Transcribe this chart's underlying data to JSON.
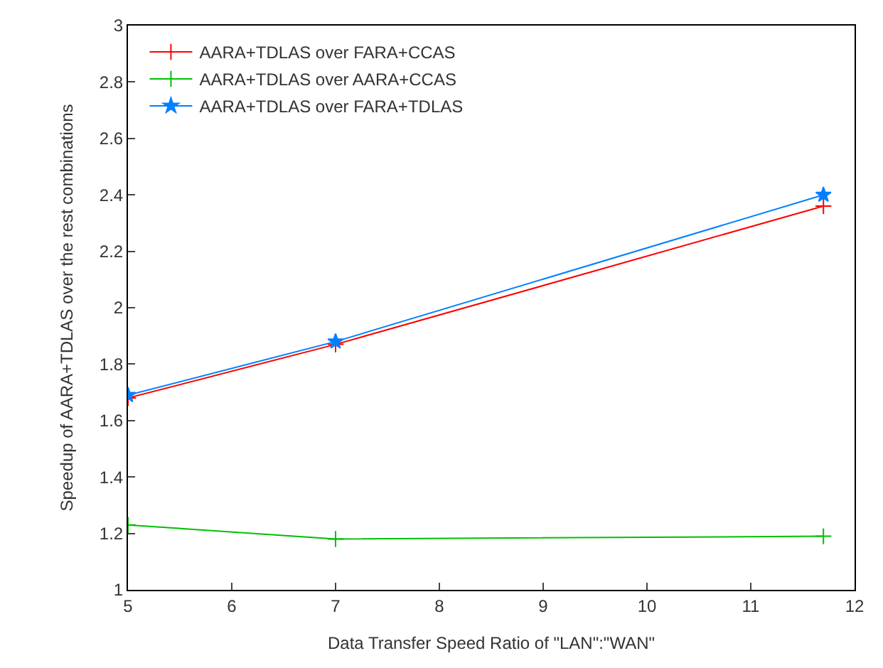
{
  "chart_data": {
    "type": "line",
    "xlabel": "Data Transfer Speed Ratio of \"LAN\":\"WAN\"",
    "ylabel": "Speedup of AARA+TDLAS over the rest combinations",
    "x": [
      5,
      7,
      11.7
    ],
    "series": [
      {
        "name": "AARA+TDLAS over FARA+CCAS",
        "color": "#ff0000",
        "values": [
          1.68,
          1.87,
          2.36
        ],
        "marker": "cross"
      },
      {
        "name": "AARA+TDLAS over AARA+CCAS",
        "color": "#00c000",
        "values": [
          1.23,
          1.18,
          1.19
        ],
        "marker": "cross"
      },
      {
        "name": "AARA+TDLAS over FARA+TDLAS",
        "color": "#0080ff",
        "values": [
          1.69,
          1.88,
          2.4
        ],
        "marker": "star"
      }
    ],
    "xlim": [
      5,
      12
    ],
    "xticks": [
      5,
      6,
      7,
      8,
      9,
      10,
      11,
      12
    ],
    "ylim": [
      1,
      3
    ],
    "yticks": [
      1,
      1.2,
      1.4,
      1.6,
      1.8,
      2,
      2.2,
      2.4,
      2.6,
      2.8,
      3
    ],
    "legend": "top left",
    "line_style": "solid"
  }
}
